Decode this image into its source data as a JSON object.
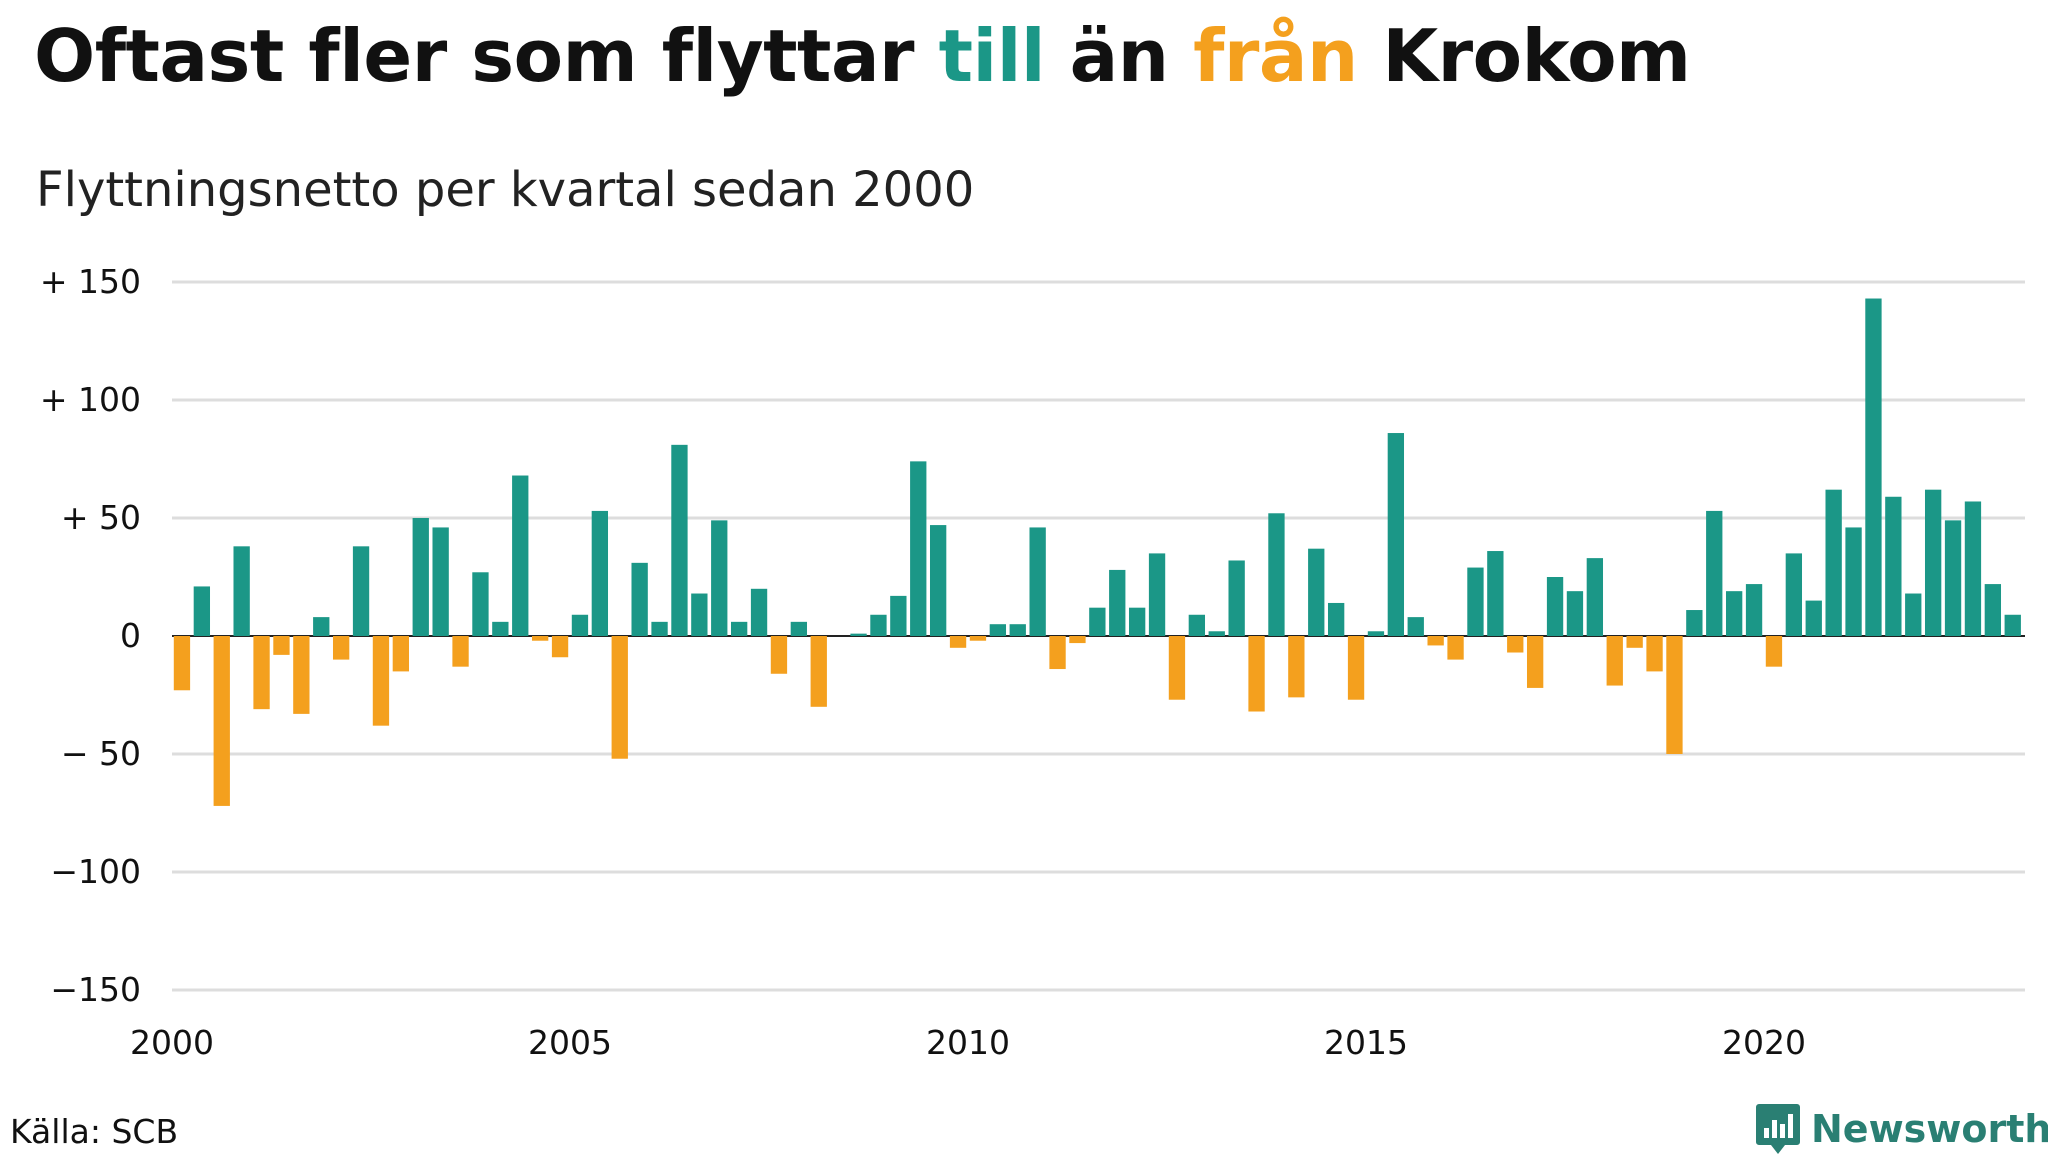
{
  "header": {
    "title_part1": "Oftast fler som flyttar ",
    "title_till": "till",
    "title_part2": " än ",
    "title_fran": "från",
    "title_part3": " Krokom",
    "subtitle": "Flyttningsnetto per kvartal sedan 2000"
  },
  "footer": {
    "source": "Källa: SCB",
    "brand": "Newsworthy"
  },
  "colors": {
    "positive": "#1b9787",
    "negative": "#f4a01e",
    "grid": "#dddddd",
    "text": "#111111"
  },
  "chart_data": {
    "type": "bar",
    "title": "Oftast fler som flyttar till än från Krokom",
    "subtitle": "Flyttningsnetto per kvartal sedan 2000",
    "x_start": "2000 Q1",
    "frequency": "quarterly",
    "xlabel": "",
    "ylabel": "",
    "ylim": [
      -150,
      150
    ],
    "y_ticks": [
      150,
      100,
      50,
      0,
      -50,
      -100,
      -150
    ],
    "y_tick_labels": [
      "+ 150",
      "+ 100",
      "+  50",
      "0",
      "− 50",
      "−100",
      "−150"
    ],
    "x_ticks": [
      "2000",
      "2005",
      "2010",
      "2015",
      "2020"
    ],
    "grid": true,
    "legend": false,
    "values": [
      -23,
      21,
      -72,
      38,
      -31,
      -8,
      -33,
      8,
      -10,
      38,
      -38,
      -15,
      50,
      46,
      -13,
      27,
      6,
      68,
      -2,
      -9,
      9,
      53,
      -52,
      31,
      6,
      81,
      18,
      49,
      6,
      20,
      -16,
      6,
      -30,
      0,
      1,
      9,
      17,
      74,
      47,
      -5,
      -2,
      5,
      5,
      46,
      -14,
      -3,
      12,
      28,
      12,
      35,
      -27,
      9,
      2,
      32,
      -32,
      52,
      -26,
      37,
      14,
      -27,
      2,
      86,
      8,
      -4,
      -10,
      29,
      36,
      -7,
      -22,
      25,
      19,
      33,
      -21,
      -5,
      -15,
      -50,
      11,
      53,
      19,
      22,
      -13,
      35,
      15,
      62,
      46,
      143,
      59,
      18,
      62,
      49,
      57,
      22,
      9
    ]
  }
}
